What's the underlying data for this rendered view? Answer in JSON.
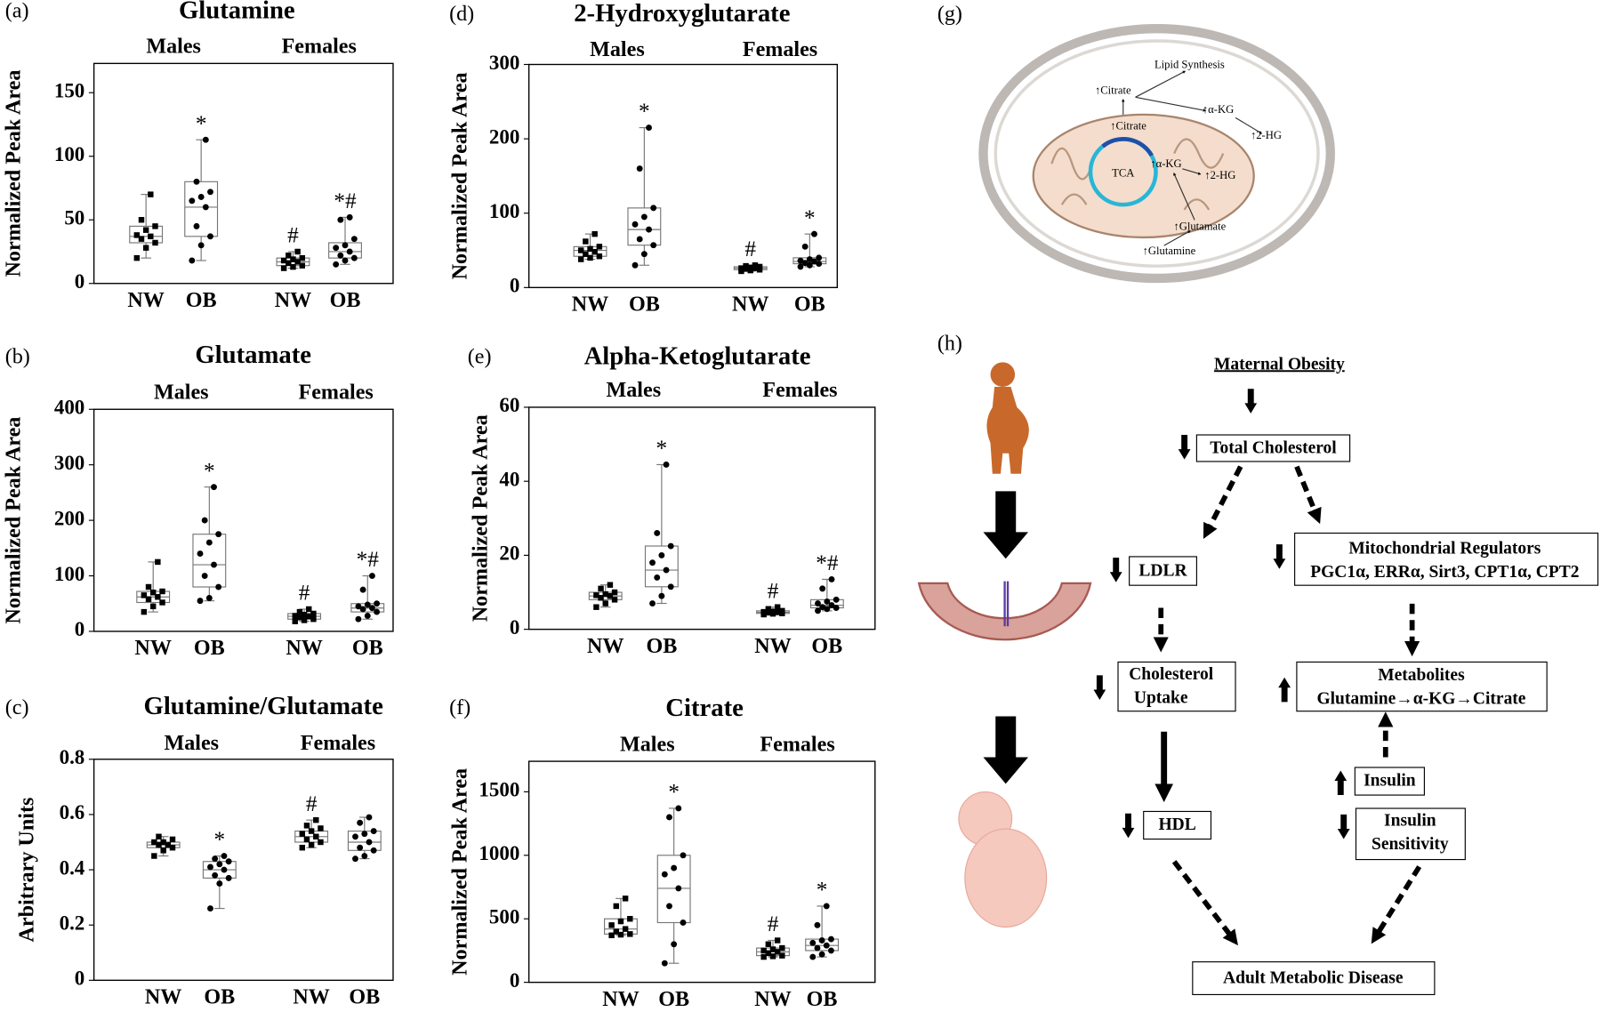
{
  "chart_data": [
    {
      "type": "box",
      "panel": "(a)",
      "title": "Glutamine",
      "y_label": "Normalized Peak Area",
      "groups": [
        "Males",
        "Females"
      ],
      "categories": [
        "NW",
        "OB",
        "NW",
        "OB"
      ],
      "ylim": [
        0,
        173
      ],
      "yticks": [
        0,
        50,
        100,
        150
      ],
      "boxes": [
        {
          "min": 20,
          "q1": 32,
          "median": 37,
          "q3": 45,
          "max": 70,
          "points": [
            20,
            28,
            32,
            35,
            37,
            38,
            42,
            45,
            50,
            70
          ]
        },
        {
          "min": 18,
          "q1": 37,
          "median": 60,
          "q3": 80,
          "max": 113,
          "label": "*",
          "points": [
            18,
            30,
            37,
            45,
            60,
            65,
            68,
            72,
            80,
            113
          ]
        },
        {
          "min": 12,
          "q1": 14,
          "median": 17,
          "q3": 20,
          "max": 25,
          "label": "#",
          "points": [
            12,
            13,
            14,
            16,
            17,
            18,
            19,
            20,
            22,
            25
          ]
        },
        {
          "min": 15,
          "q1": 20,
          "median": 25,
          "q3": 32,
          "max": 52,
          "label": "*#",
          "points": [
            15,
            18,
            20,
            22,
            25,
            28,
            30,
            35,
            50,
            52
          ]
        }
      ]
    },
    {
      "type": "box",
      "panel": "(b)",
      "title": "Glutamate",
      "y_label": "Normalized Peak Area",
      "groups": [
        "Males",
        "Females"
      ],
      "categories": [
        "NW",
        "OB",
        "NW",
        "OB"
      ],
      "ylim": [
        0,
        400
      ],
      "yticks": [
        0,
        100,
        200,
        300,
        400
      ],
      "boxes": [
        {
          "min": 35,
          "q1": 52,
          "median": 62,
          "q3": 72,
          "max": 125,
          "points": [
            35,
            45,
            52,
            58,
            62,
            65,
            70,
            72,
            80,
            125
          ]
        },
        {
          "min": 55,
          "q1": 80,
          "median": 120,
          "q3": 175,
          "max": 260,
          "label": "*",
          "points": [
            55,
            60,
            80,
            100,
            120,
            140,
            160,
            175,
            200,
            260
          ]
        },
        {
          "min": 18,
          "q1": 22,
          "median": 27,
          "q3": 32,
          "max": 40,
          "label": "#",
          "points": [
            18,
            20,
            22,
            25,
            27,
            28,
            30,
            32,
            35,
            40
          ]
        },
        {
          "min": 22,
          "q1": 35,
          "median": 42,
          "q3": 50,
          "max": 100,
          "label": "*#",
          "points": [
            22,
            28,
            35,
            40,
            42,
            45,
            48,
            50,
            75,
            100
          ]
        }
      ]
    },
    {
      "type": "box",
      "panel": "(c)",
      "title": "Glutamine/Glutamate",
      "y_label": "Arbitrary Units",
      "groups": [
        "Males",
        "Females"
      ],
      "categories": [
        "NW",
        "OB",
        "NW",
        "OB"
      ],
      "ylim": [
        0,
        0.8
      ],
      "yticks": [
        0,
        0.2,
        0.4,
        0.6,
        0.8
      ],
      "boxes": [
        {
          "min": 0.45,
          "q1": 0.48,
          "median": 0.49,
          "q3": 0.5,
          "max": 0.52,
          "points": [
            0.45,
            0.47,
            0.48,
            0.49,
            0.49,
            0.5,
            0.5,
            0.51,
            0.52
          ]
        },
        {
          "min": 0.26,
          "q1": 0.37,
          "median": 0.4,
          "q3": 0.43,
          "max": 0.45,
          "label": "*",
          "points": [
            0.26,
            0.35,
            0.37,
            0.38,
            0.4,
            0.41,
            0.42,
            0.43,
            0.44,
            0.45
          ]
        },
        {
          "min": 0.48,
          "q1": 0.5,
          "median": 0.52,
          "q3": 0.54,
          "max": 0.58,
          "label": "#",
          "points": [
            0.48,
            0.49,
            0.5,
            0.51,
            0.52,
            0.53,
            0.54,
            0.55,
            0.56,
            0.58
          ]
        },
        {
          "min": 0.44,
          "q1": 0.47,
          "median": 0.5,
          "q3": 0.54,
          "max": 0.59,
          "points": [
            0.44,
            0.45,
            0.47,
            0.48,
            0.5,
            0.52,
            0.53,
            0.54,
            0.57,
            0.59
          ]
        }
      ]
    },
    {
      "type": "box",
      "panel": "(d)",
      "title": "2-Hydroxyglutarate",
      "y_label": "Normalized Peak Area",
      "groups": [
        "Males",
        "Females"
      ],
      "categories": [
        "NW",
        "OB",
        "NW",
        "OB"
      ],
      "ylim": [
        0,
        300
      ],
      "yticks": [
        0,
        100,
        200,
        300
      ],
      "boxes": [
        {
          "min": 38,
          "q1": 42,
          "median": 50,
          "q3": 55,
          "max": 72,
          "points": [
            38,
            40,
            42,
            45,
            48,
            50,
            52,
            55,
            62,
            72
          ]
        },
        {
          "min": 30,
          "q1": 57,
          "median": 78,
          "q3": 107,
          "max": 215,
          "label": "*",
          "points": [
            30,
            45,
            57,
            65,
            78,
            85,
            95,
            107,
            160,
            215
          ]
        },
        {
          "min": 22,
          "q1": 24,
          "median": 26,
          "q3": 28,
          "max": 30,
          "label": "#",
          "points": [
            22,
            23,
            24,
            25,
            26,
            26,
            27,
            28,
            29,
            30
          ]
        },
        {
          "min": 28,
          "q1": 32,
          "median": 35,
          "q3": 40,
          "max": 72,
          "label": "*",
          "points": [
            28,
            30,
            32,
            33,
            35,
            36,
            38,
            40,
            55,
            72
          ]
        }
      ]
    },
    {
      "type": "box",
      "panel": "(e)",
      "title": "Alpha-Ketoglutarate",
      "y_label": "Normalized Peak Area",
      "groups": [
        "Males",
        "Females"
      ],
      "categories": [
        "NW",
        "OB",
        "NW",
        "OB"
      ],
      "ylim": [
        0,
        60
      ],
      "yticks": [
        0,
        20,
        40,
        60
      ],
      "boxes": [
        {
          "min": 6,
          "q1": 8,
          "median": 9,
          "q3": 10,
          "max": 12,
          "points": [
            6,
            7,
            8,
            8.5,
            9,
            9.2,
            9.5,
            10,
            11,
            12
          ]
        },
        {
          "min": 7,
          "q1": 11.5,
          "median": 16,
          "q3": 22.5,
          "max": 44.5,
          "label": "*",
          "points": [
            7,
            9,
            11.5,
            14,
            16,
            18,
            20,
            22.5,
            26,
            44.5
          ]
        },
        {
          "min": 4,
          "q1": 4.3,
          "median": 4.6,
          "q3": 5,
          "max": 6,
          "label": "#",
          "points": [
            4,
            4.2,
            4.3,
            4.5,
            4.6,
            4.7,
            4.8,
            5,
            5.5,
            6
          ]
        },
        {
          "min": 5,
          "q1": 5.8,
          "median": 6.5,
          "q3": 8,
          "max": 13.5,
          "label": "*#",
          "points": [
            5,
            5.5,
            5.8,
            6,
            6.5,
            7,
            7.5,
            8,
            11,
            13.5
          ]
        }
      ]
    },
    {
      "type": "box",
      "panel": "(f)",
      "title": "Citrate",
      "y_label": "Normalized Peak Area",
      "groups": [
        "Males",
        "Females"
      ],
      "categories": [
        "NW",
        "OB",
        "NW",
        "OB"
      ],
      "ylim": [
        0,
        1740
      ],
      "yticks": [
        0,
        500,
        1000,
        1500
      ],
      "boxes": [
        {
          "min": 370,
          "q1": 380,
          "median": 420,
          "q3": 500,
          "max": 660,
          "points": [
            370,
            375,
            380,
            400,
            420,
            450,
            480,
            500,
            600,
            660
          ]
        },
        {
          "min": 150,
          "q1": 470,
          "median": 740,
          "q3": 1000,
          "max": 1370,
          "label": "*",
          "points": [
            150,
            300,
            470,
            600,
            740,
            850,
            900,
            1000,
            1300,
            1370
          ]
        },
        {
          "min": 200,
          "q1": 210,
          "median": 240,
          "q3": 270,
          "max": 330,
          "label": "#",
          "points": [
            200,
            205,
            210,
            230,
            240,
            250,
            260,
            270,
            300,
            330
          ]
        },
        {
          "min": 200,
          "q1": 250,
          "median": 290,
          "q3": 340,
          "max": 600,
          "label": "*",
          "points": [
            200,
            220,
            250,
            270,
            290,
            310,
            330,
            340,
            450,
            600
          ]
        }
      ]
    }
  ],
  "diagram_g": {
    "label": "(g)",
    "texts": [
      "Lipid Synthesis",
      "↑Citrate",
      "↑α-KG",
      "↑2-HG",
      "↑Citrate",
      "TCA",
      "↑α-KG",
      "↑2-HG",
      "↑Glutamate",
      "↑Glutamine"
    ]
  },
  "diagram_h": {
    "label": "(h)",
    "maternal_obesity": "Maternal Obesity",
    "total_cholesterol": "Total Cholesterol",
    "ldlr": "LDLR",
    "mito_regulators": [
      "Mitochondrial Regulators",
      "PGC1α, ERRα, Sirt3, CPT1α, CPT2"
    ],
    "cholesterol_uptake": [
      "Cholesterol",
      "Uptake"
    ],
    "metabolites": [
      "Metabolites",
      "Glutamine→α-KG→Citrate"
    ],
    "insulin": "Insulin",
    "hdl": "HDL",
    "insulin_sensitivity": [
      "Insulin",
      "Sensitivity"
    ],
    "outcome": "Adult Metabolic Disease"
  }
}
